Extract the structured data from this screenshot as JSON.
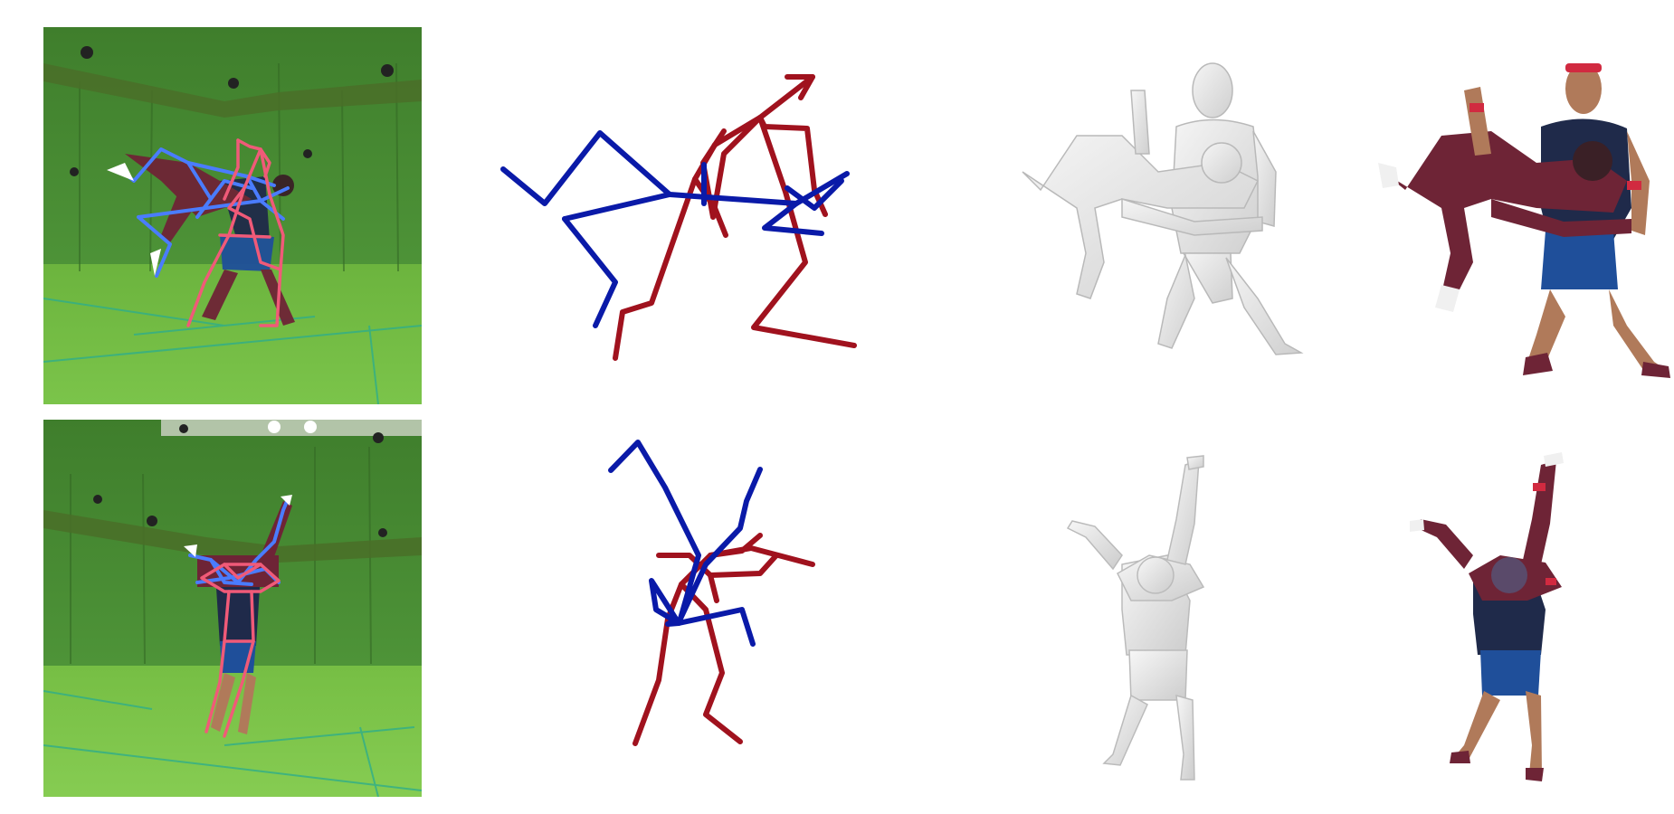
{
  "figure": {
    "rows": [
      {
        "id": "row-1",
        "panels": [
          "input-photo-with-2d-skeleton-overlay",
          "3d-skeleton",
          "untextured-mesh",
          "textured-mesh"
        ]
      },
      {
        "id": "row-2",
        "panels": [
          "input-photo-with-2d-skeleton-overlay",
          "3d-skeleton",
          "untextured-mesh",
          "textured-mesh"
        ]
      }
    ]
  },
  "colors": {
    "background": "#ffffff",
    "green_screen": "#4f8f36",
    "green_floor": "#6fbf3f",
    "overlay_person_a": "#4a7cff",
    "overlay_person_b": "#f05a78",
    "skeleton_person_a": "#0a1aa8",
    "skeleton_person_b": "#a0121e",
    "mesh_gray": "#e6e6e6",
    "mesh_shadow": "#c8c8c8",
    "suit_maroon": "#6e2436",
    "shirt_navy": "#1f2a4a",
    "shorts_blue": "#1f4f9a",
    "skin_tan": "#b07a5a"
  }
}
